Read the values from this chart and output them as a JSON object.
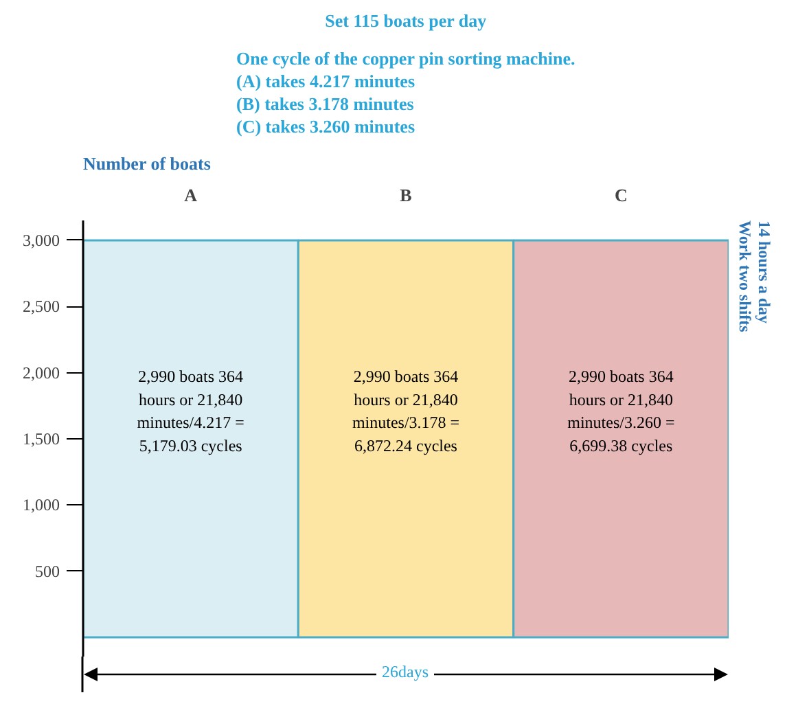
{
  "chart_data": {
    "type": "bar",
    "title": "Set 115 boats per day",
    "subtitle": "One cycle of the copper pin sorting machine.\n(A) takes 4.217 minutes\n(B) takes 3.178 minutes\n(C) takes 3.260 minutes",
    "ylabel": "Number of boats",
    "categories": [
      "A",
      "B",
      "C"
    ],
    "values": [
      3000,
      3000,
      3000
    ],
    "colors": [
      "#dbeef4",
      "#fde6a4",
      "#e6b8b7"
    ],
    "ylim": [
      -150,
      3150
    ],
    "yticks": [
      500,
      {
        "value": 1000,
        "label": "1,000"
      },
      {
        "value": 1500,
        "label": "1,500"
      },
      {
        "value": 2000,
        "label": "2,000"
      },
      {
        "value": 2500,
        "label": "2,500"
      },
      {
        "value": 3000,
        "label": "3,000"
      }
    ],
    "grid": false,
    "annotations": [
      "2,990 boats 364\nhours or 21,840\nminutes/4.217 =\n5,179.03 cycles",
      "2,990 boats 364\nhours or 21,840\nminutes/3.178 =\n6,872.24 cycles",
      "2,990 boats 364\nhours or 21,840\nminutes/3.260 =\n6,699.38 cycles",
      "26days",
      "14 hours a day\nWork two shifts"
    ]
  }
}
